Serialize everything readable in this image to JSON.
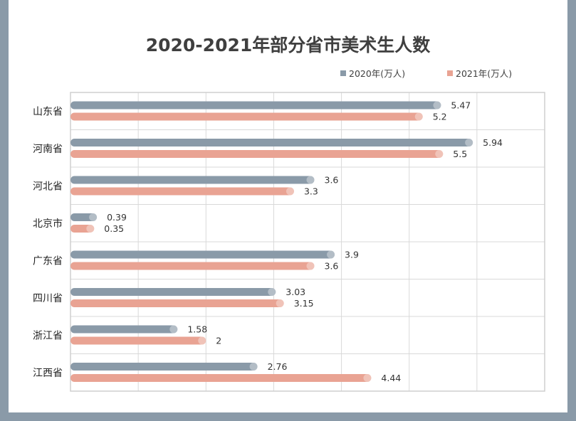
{
  "chart_data": {
    "type": "bar",
    "orientation": "horizontal",
    "title": "2020-2021年部分省市美术生人数",
    "categories": [
      "山东省",
      "河南省",
      "河北省",
      "北京市",
      "广东省",
      "四川省",
      "浙江省",
      "江西省"
    ],
    "series": [
      {
        "name": "2020年(万人)",
        "color": "#8a9aa8",
        "values": [
          5.47,
          5.94,
          3.6,
          0.39,
          3.9,
          3.03,
          1.58,
          2.76
        ],
        "labels": [
          "5.47",
          "5.94",
          "3.6",
          "0.39",
          "3.9",
          "3.03",
          "1.58",
          "2.76"
        ]
      },
      {
        "name": "2021年(万人)",
        "color": "#e9a393",
        "values": [
          5.2,
          5.5,
          3.3,
          0.35,
          3.6,
          3.15,
          2,
          4.44
        ],
        "labels": [
          "5.2",
          "5.5",
          "3.3",
          "0.35",
          "3.6",
          "3.15",
          "2",
          "4.44"
        ]
      }
    ],
    "xlim": [
      0,
      7
    ],
    "grid": true,
    "legend": "top-right",
    "xlabel": "",
    "ylabel": ""
  }
}
